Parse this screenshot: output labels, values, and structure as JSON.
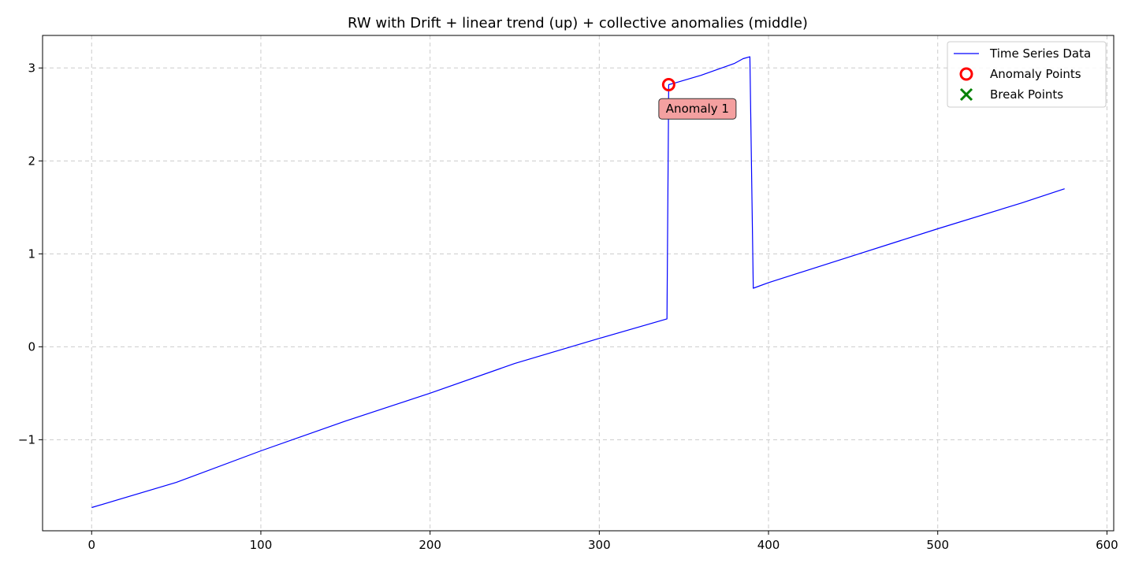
{
  "chart_data": {
    "type": "line",
    "title": "RW with Drift + linear trend (up) + collective anomalies (middle)",
    "xlabel": "",
    "ylabel": "",
    "xlim": [
      -29,
      604
    ],
    "ylim": [
      -1.98,
      3.35
    ],
    "xticks": [
      0,
      100,
      200,
      300,
      400,
      500,
      600
    ],
    "yticks": [
      -1,
      0,
      1,
      2,
      3
    ],
    "ytick_labels": [
      "−1",
      "0",
      "1",
      "2",
      "3"
    ],
    "grid": true,
    "legend_position": "upper-right",
    "series": [
      {
        "name": "Time Series Data",
        "kind": "line",
        "color": "#0000ff",
        "points": [
          [
            0,
            -1.73
          ],
          [
            50,
            -1.46
          ],
          [
            100,
            -1.12
          ],
          [
            150,
            -0.8
          ],
          [
            200,
            -0.5
          ],
          [
            250,
            -0.18
          ],
          [
            300,
            0.09
          ],
          [
            340,
            0.3
          ],
          [
            341,
            2.82
          ],
          [
            345,
            2.84
          ],
          [
            360,
            2.92
          ],
          [
            380,
            3.05
          ],
          [
            385,
            3.1
          ],
          [
            389,
            3.12
          ],
          [
            391,
            0.63
          ],
          [
            400,
            0.69
          ],
          [
            450,
            0.98
          ],
          [
            500,
            1.27
          ],
          [
            550,
            1.55
          ],
          [
            575,
            1.7
          ]
        ]
      },
      {
        "name": "Anomaly Points",
        "kind": "marker-circle",
        "color": "#ff0000",
        "points": [
          [
            341,
            2.82
          ]
        ]
      },
      {
        "name": "Break Points",
        "kind": "marker-x",
        "color": "#008000",
        "points": []
      }
    ],
    "annotations": [
      {
        "text": "Anomaly 1",
        "x": 358,
        "y": 2.56,
        "bg": "#f4a0a0"
      }
    ]
  }
}
